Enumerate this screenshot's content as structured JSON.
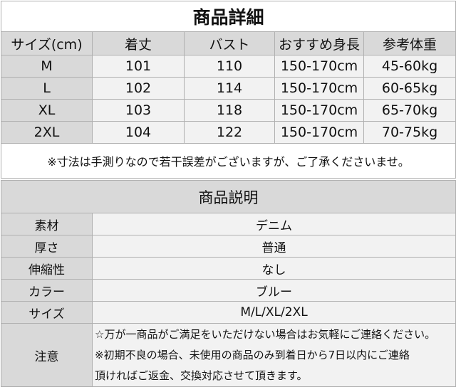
{
  "size_table": {
    "title": "商品詳細",
    "headers": [
      "サイズ(cm)",
      "着丈",
      "バスト",
      "おすすめ身長",
      "参考体重"
    ],
    "rows": [
      [
        "M",
        "101",
        "110",
        "150-170cm",
        "45-60kg"
      ],
      [
        "L",
        "102",
        "114",
        "150-170cm",
        "60-65kg"
      ],
      [
        "XL",
        "103",
        "118",
        "150-170cm",
        "65-70kg"
      ],
      [
        "2XL",
        "104",
        "122",
        "150-170cm",
        "70-75kg"
      ]
    ],
    "note": "※寸法は手測りなので若干誤差がございますが、ご了承くださいませ。"
  },
  "description": {
    "title": "商品説明",
    "rows": [
      {
        "label": "素材",
        "value": "デニム"
      },
      {
        "label": "厚さ",
        "value": "普通"
      },
      {
        "label": "伸縮性",
        "value": "なし"
      },
      {
        "label": "カラー",
        "value": "ブルー"
      },
      {
        "label": "サイズ",
        "value": "M/L/XL/2XL"
      }
    ],
    "caution": {
      "label": "注意",
      "lines": [
        "☆万が一商品がご満足をいただけない場合はお気軽にご連絡ください。",
        "※初期不良の場合、未使用の商品のみ到着日から7日以内にご連絡",
        "頂ければご返金、交換対応させて頂きます。"
      ]
    }
  }
}
